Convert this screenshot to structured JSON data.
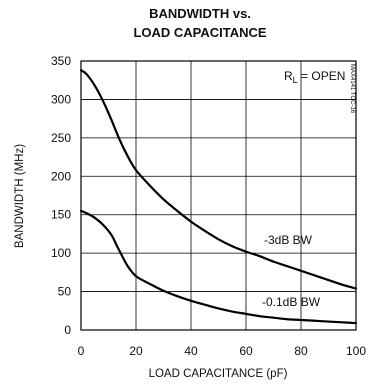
{
  "chart_data": {
    "type": "line",
    "title_line1": "BANDWIDTH vs.",
    "title_line2": "LOAD CAPACITANCE",
    "xlabel": "LOAD CAPACITANCE (pF)",
    "ylabel": "BANDWIDTH (MHz)",
    "xlim": [
      0,
      100
    ],
    "ylim": [
      0,
      350
    ],
    "x_ticks": [
      0,
      20,
      40,
      60,
      80,
      100
    ],
    "y_ticks": [
      0,
      50,
      100,
      150,
      200,
      250,
      300,
      350
    ],
    "grid": true,
    "condition_label": "R",
    "condition_sub": "L",
    "condition_value": " = OPEN",
    "figure_code": "MAX4141 TOC-16",
    "series": [
      {
        "name": "-3dB BW",
        "x": [
          0,
          2,
          5,
          8,
          11,
          14,
          17,
          20,
          25,
          30,
          35,
          40,
          45,
          50,
          55,
          60,
          65,
          70,
          75,
          80,
          85,
          90,
          95,
          100
        ],
        "y": [
          338,
          333,
          318,
          298,
          274,
          248,
          226,
          208,
          188,
          170,
          155,
          141,
          129,
          118,
          109,
          102,
          96,
          89,
          83,
          77,
          71,
          65,
          59,
          54
        ]
      },
      {
        "name": "-0.1dB BW",
        "x": [
          0,
          2,
          5,
          8,
          11,
          13,
          15,
          17,
          20,
          25,
          30,
          35,
          40,
          45,
          50,
          55,
          60,
          65,
          70,
          75,
          80,
          85,
          90,
          95,
          100
        ],
        "y": [
          155,
          152,
          146,
          137,
          124,
          110,
          96,
          83,
          70,
          60,
          51,
          44,
          38,
          33,
          28,
          24,
          21,
          18,
          16,
          14,
          13,
          12,
          11,
          10,
          9
        ]
      }
    ]
  }
}
